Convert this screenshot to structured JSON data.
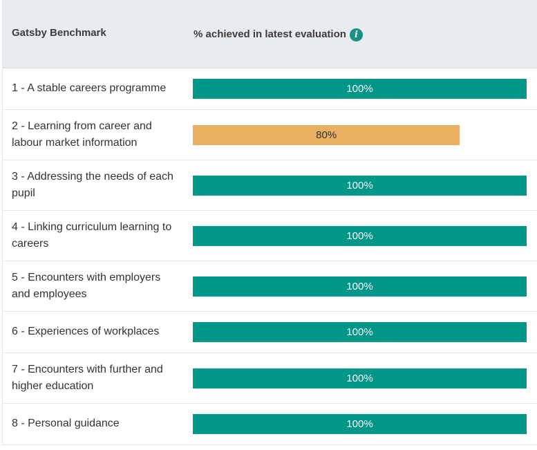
{
  "header": {
    "col_benchmark": "Gatsby Benchmark",
    "col_achieved": "% achieved in latest evaluation",
    "info_icon": "info-icon"
  },
  "rows": [
    {
      "label": "1 - A stable careers programme",
      "value": "100%",
      "percent": 100
    },
    {
      "label": "2 - Learning from career and labour market information",
      "value": "80%",
      "percent": 80
    },
    {
      "label": "3 - Addressing the needs of each pupil",
      "value": "100%",
      "percent": 100
    },
    {
      "label": "4 - Linking curriculum learning to careers",
      "value": "100%",
      "percent": 100
    },
    {
      "label": "5 - Encounters with employers and employees",
      "value": "100%",
      "percent": 100
    },
    {
      "label": "6 - Experiences of workplaces",
      "value": "100%",
      "percent": 100
    },
    {
      "label": "7 - Encounters with further and higher education",
      "value": "100%",
      "percent": 100
    },
    {
      "label": "8 - Personal guidance",
      "value": "100%",
      "percent": 100
    }
  ],
  "colors": {
    "complete": "#009688",
    "partial": "#e8b060",
    "header_bg": "#e9ecef"
  }
}
